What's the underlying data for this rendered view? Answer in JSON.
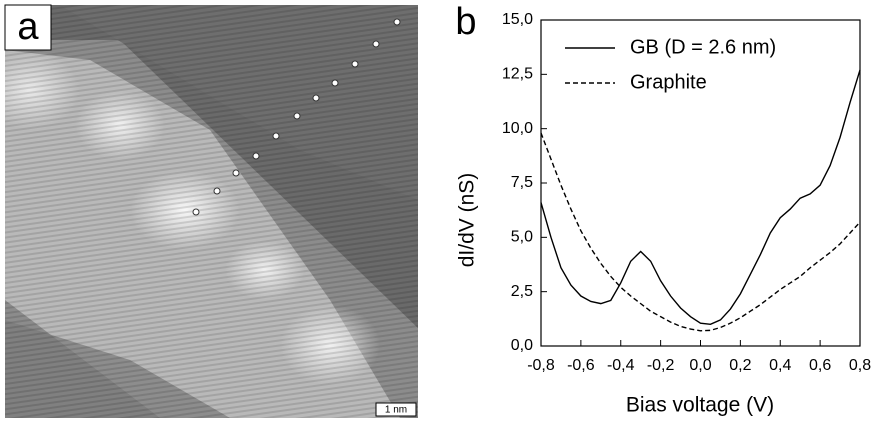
{
  "panel_a": {
    "label": "a",
    "scale_bar": "1 nm"
  },
  "chart_data": {
    "type": "line",
    "panel_label": "b",
    "x_label": "Bias voltage (V)",
    "y_label": "dI/dV (nS)",
    "x": [
      -0.8,
      -0.75,
      -0.7,
      -0.65,
      -0.6,
      -0.55,
      -0.5,
      -0.45,
      -0.4,
      -0.35,
      -0.3,
      -0.25,
      -0.2,
      -0.15,
      -0.1,
      -0.05,
      0,
      0.05,
      0.1,
      0.15,
      0.2,
      0.25,
      0.3,
      0.35,
      0.4,
      0.45,
      0.5,
      0.55,
      0.6,
      0.65,
      0.7,
      0.75,
      0.8
    ],
    "series": [
      {
        "name": "GB (D = 2.6 nm)",
        "color": "#000000",
        "dash": "solid",
        "values": [
          6.6,
          5.0,
          3.6,
          2.8,
          2.3,
          2.05,
          1.95,
          2.1,
          2.9,
          3.9,
          4.35,
          3.9,
          3.0,
          2.3,
          1.75,
          1.35,
          1.05,
          1.0,
          1.2,
          1.7,
          2.4,
          3.3,
          4.2,
          5.2,
          5.9,
          6.3,
          6.8,
          7.0,
          7.4,
          8.3,
          9.6,
          11.2,
          12.7
        ]
      },
      {
        "name": "Graphite",
        "color": "#000000",
        "dash": "dashed",
        "values": [
          9.8,
          8.6,
          7.4,
          6.3,
          5.3,
          4.5,
          3.8,
          3.2,
          2.7,
          2.3,
          1.95,
          1.6,
          1.35,
          1.1,
          0.9,
          0.78,
          0.7,
          0.72,
          0.85,
          1.05,
          1.3,
          1.6,
          1.9,
          2.25,
          2.6,
          2.9,
          3.2,
          3.6,
          3.95,
          4.3,
          4.7,
          5.2,
          5.7
        ]
      }
    ],
    "xlim": [
      -0.8,
      0.8
    ],
    "xticks": [
      {
        "value": -0.8,
        "label": "-0,8"
      },
      {
        "value": -0.6,
        "label": "-0,6"
      },
      {
        "value": -0.4,
        "label": "-0,4"
      },
      {
        "value": -0.2,
        "label": "-0,2"
      },
      {
        "value": 0,
        "label": "0,0"
      },
      {
        "value": 0.2,
        "label": "0,2"
      },
      {
        "value": 0.4,
        "label": "0,4"
      },
      {
        "value": 0.6,
        "label": "0,6"
      },
      {
        "value": 0.8,
        "label": "0,8"
      }
    ],
    "ylim": [
      0,
      15
    ],
    "yticks": [
      {
        "value": 0,
        "label": "0,0"
      },
      {
        "value": 2.5,
        "label": "2,5"
      },
      {
        "value": 5,
        "label": "5,0"
      },
      {
        "value": 7.5,
        "label": "7,5"
      },
      {
        "value": 10,
        "label": "10,0"
      },
      {
        "value": 12.5,
        "label": "12,5"
      },
      {
        "value": 15,
        "label": "15,0"
      }
    ],
    "legend": "upper left"
  }
}
